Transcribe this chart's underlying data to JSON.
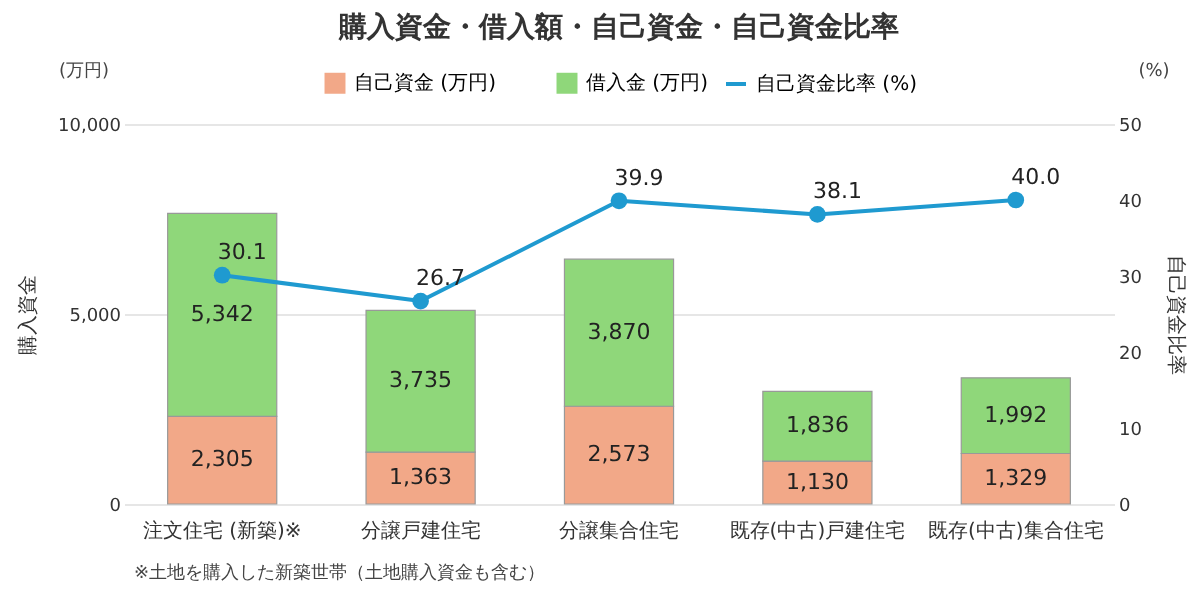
{
  "chart_data": {
    "type": "bar",
    "title": "購入資金・借入額・自己資金・自己資金比率",
    "categories": [
      "注文住宅 (新築)※",
      "分譲戸建住宅",
      "分譲集合住宅",
      "既存(中古)戸建住宅",
      "既存(中古)集合住宅"
    ],
    "stacked": true,
    "series": [
      {
        "name": "自己資金 (万円)",
        "color": "#f2a888",
        "values": [
          2305,
          1363,
          2573,
          1130,
          1329
        ],
        "value_labels": [
          "2,305",
          "1,363",
          "2,573",
          "1,130",
          "1,329"
        ]
      },
      {
        "name": "借入金 (万円)",
        "color": "#8fd77a",
        "values": [
          5342,
          3735,
          3870,
          1836,
          1992
        ],
        "value_labels": [
          "5,342",
          "3,735",
          "3,870",
          "1,836",
          "1,992"
        ]
      },
      {
        "name": "自己資金比率 (%)",
        "type": "line",
        "axis": "y2",
        "color": "#1f9ad0",
        "marker": "circle",
        "values": [
          30.1,
          26.7,
          39.9,
          38.1,
          40.0
        ],
        "value_labels": [
          "30.1",
          "26.7",
          "39.9",
          "38.1",
          "40.0"
        ]
      }
    ],
    "ylabel": "購入資金",
    "y2label": "自己資金比率",
    "ylim": [
      0,
      10000
    ],
    "yticks": [
      {
        "value": 0,
        "label": "0"
      },
      {
        "value": 5000,
        "label": "5,000"
      },
      {
        "value": 10000,
        "label": "10,000"
      }
    ],
    "y2lim": [
      0,
      50
    ],
    "y2ticks": [
      0,
      10,
      20,
      30,
      40,
      50
    ],
    "grid": "y",
    "legend": "top",
    "annotations": [
      "(万円)",
      "(%)",
      "※土地を購入した新築世帯（土地購入資金も含む）"
    ]
  }
}
